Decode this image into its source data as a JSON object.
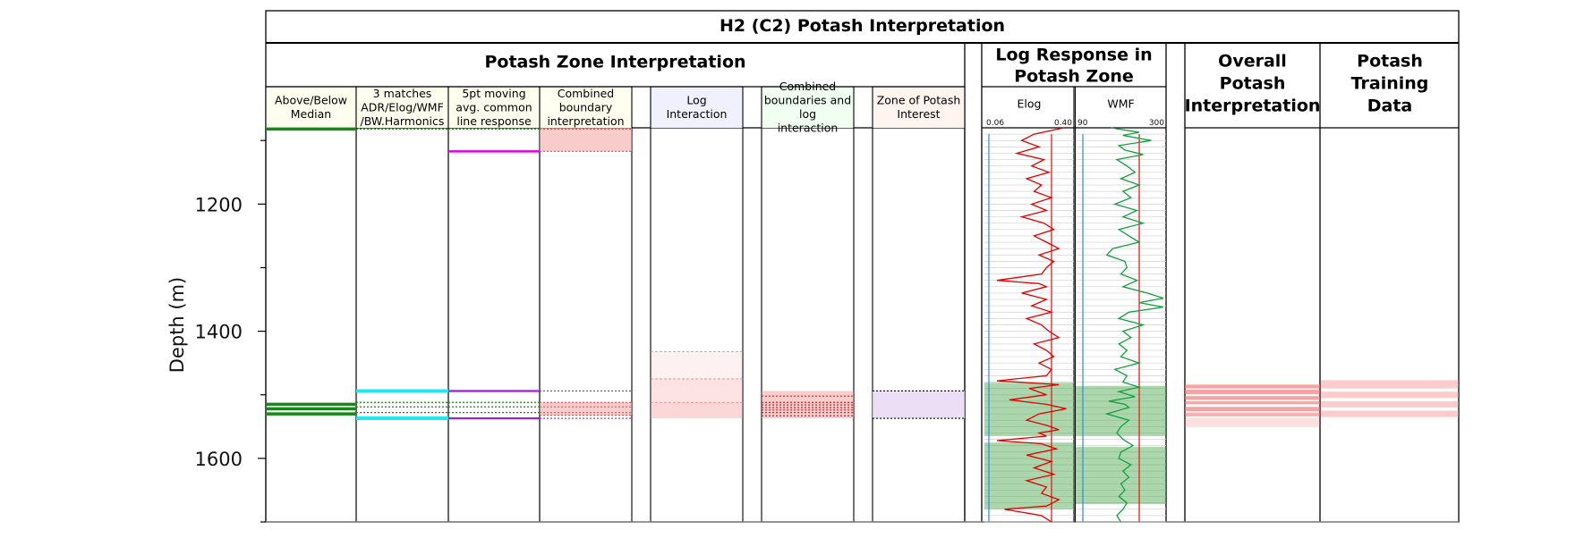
{
  "chart_data": {
    "type": "table",
    "title": "H2 (C2) Potash Interpretation",
    "ylabel": "Depth (m)",
    "yticks": [
      "1200",
      "1400",
      "1600"
    ],
    "ylim": [
      1700,
      1080
    ],
    "groups": {
      "zone": "Potash Zone Interpretation",
      "log": "Log Response in Potash Zone",
      "overall": "Overall Potash Interpretation",
      "training": "Potash Training Data"
    },
    "tracks": [
      "Above/Below Median",
      "3 matches ADR/Elog/WMF /BW.Harmonics",
      "5pt moving avg. common line response",
      "Combined boundary interpretation",
      "Log Interaction",
      "Combined boundaries and log interaction",
      "Zone of Potash Interest"
    ],
    "curves": {
      "elog": {
        "name": "Elog",
        "min_label": "0.06",
        "max_label": "0.40",
        "color": "#e00000"
      },
      "wmf": {
        "name": "WMF",
        "min_label": "90",
        "max_label": "300",
        "color": "#12a040"
      }
    },
    "median_lines": [
      1082,
      1515,
      1522,
      1530
    ],
    "matches_lines": {
      "solid": [
        1494,
        1537
      ],
      "dotted": [
        1082,
        1512,
        1519,
        1528
      ]
    },
    "moving_avg_lines": {
      "magenta": [
        1117
      ],
      "purple": [
        1494,
        1537
      ],
      "dotted": [
        1082,
        1512,
        1519,
        1528
      ]
    },
    "combined_boundary": {
      "bands": [
        [
          1080,
          1117
        ],
        [
          1512,
          1532
        ]
      ],
      "dotted": [
        1082,
        1117,
        1494,
        1512,
        1519,
        1528,
        1532,
        1537
      ]
    },
    "log_interaction_bands": [
      [
        1432,
        1475,
        0.22
      ],
      [
        1475,
        1512,
        0.45
      ],
      [
        1512,
        1537,
        0.65
      ]
    ],
    "combined_log_interaction": {
      "bands": [
        [
          1494,
          1537
        ]
      ],
      "dotted": [
        1502,
        1512,
        1516,
        1520,
        1524,
        1528,
        1533
      ]
    },
    "potash_interest_zones": [
      [
        1494,
        1537
      ]
    ],
    "log_shading": {
      "elog": [
        [
          1481,
          1565
        ],
        [
          1575,
          1680
        ]
      ],
      "wmf": [
        [
          1486,
          1565
        ],
        [
          1582,
          1672
        ]
      ]
    },
    "overall_bands": [
      [
        1484,
        1490,
        0.85
      ],
      [
        1492,
        1499,
        0.85
      ],
      [
        1502,
        1508,
        0.85
      ],
      [
        1510,
        1515,
        0.8
      ],
      [
        1519,
        1526,
        0.85
      ],
      [
        1528,
        1534,
        0.75
      ],
      [
        1536,
        1551,
        0.3
      ]
    ],
    "training_bands": [
      [
        1477,
        1490,
        0.6
      ],
      [
        1495,
        1505,
        0.6
      ],
      [
        1510,
        1520,
        0.6
      ],
      [
        1525,
        1535,
        0.6
      ]
    ],
    "elog_curve": [
      [
        1080,
        0.37
      ],
      [
        1090,
        0.25
      ],
      [
        1100,
        0.2
      ],
      [
        1110,
        0.27
      ],
      [
        1120,
        0.18
      ],
      [
        1130,
        0.29
      ],
      [
        1140,
        0.24
      ],
      [
        1150,
        0.31
      ],
      [
        1160,
        0.22
      ],
      [
        1170,
        0.28
      ],
      [
        1180,
        0.25
      ],
      [
        1190,
        0.32
      ],
      [
        1200,
        0.24
      ],
      [
        1210,
        0.3
      ],
      [
        1220,
        0.2
      ],
      [
        1230,
        0.29
      ],
      [
        1240,
        0.33
      ],
      [
        1250,
        0.25
      ],
      [
        1260,
        0.3
      ],
      [
        1270,
        0.35
      ],
      [
        1280,
        0.27
      ],
      [
        1290,
        0.33
      ],
      [
        1300,
        0.3
      ],
      [
        1310,
        0.28
      ],
      [
        1320,
        0.1
      ],
      [
        1325,
        0.27
      ],
      [
        1330,
        0.3
      ],
      [
        1340,
        0.2
      ],
      [
        1350,
        0.3
      ],
      [
        1360,
        0.24
      ],
      [
        1370,
        0.32
      ],
      [
        1380,
        0.22
      ],
      [
        1390,
        0.28
      ],
      [
        1400,
        0.31
      ],
      [
        1410,
        0.35
      ],
      [
        1420,
        0.25
      ],
      [
        1430,
        0.3
      ],
      [
        1440,
        0.33
      ],
      [
        1450,
        0.27
      ],
      [
        1460,
        0.32
      ],
      [
        1470,
        0.3
      ],
      [
        1478,
        0.1
      ],
      [
        1484,
        0.35
      ],
      [
        1490,
        0.23
      ],
      [
        1500,
        0.3
      ],
      [
        1508,
        0.15
      ],
      [
        1515,
        0.3
      ],
      [
        1522,
        0.38
      ],
      [
        1530,
        0.27
      ],
      [
        1540,
        0.22
      ],
      [
        1548,
        0.3
      ],
      [
        1555,
        0.35
      ],
      [
        1560,
        0.27
      ],
      [
        1565,
        0.3
      ],
      [
        1572,
        0.1
      ],
      [
        1577,
        0.28
      ],
      [
        1585,
        0.34
      ],
      [
        1595,
        0.22
      ],
      [
        1605,
        0.32
      ],
      [
        1615,
        0.25
      ],
      [
        1625,
        0.33
      ],
      [
        1635,
        0.22
      ],
      [
        1645,
        0.3
      ],
      [
        1655,
        0.28
      ],
      [
        1665,
        0.35
      ],
      [
        1675,
        0.3
      ],
      [
        1680,
        0.13
      ],
      [
        1690,
        0.28
      ],
      [
        1700,
        0.32
      ]
    ],
    "wmf_curve": [
      [
        1080,
        170
      ],
      [
        1087,
        240
      ],
      [
        1092,
        200
      ],
      [
        1100,
        270
      ],
      [
        1108,
        190
      ],
      [
        1115,
        205
      ],
      [
        1122,
        250
      ],
      [
        1130,
        185
      ],
      [
        1140,
        210
      ],
      [
        1150,
        230
      ],
      [
        1160,
        195
      ],
      [
        1170,
        240
      ],
      [
        1180,
        200
      ],
      [
        1190,
        220
      ],
      [
        1200,
        180
      ],
      [
        1210,
        235
      ],
      [
        1220,
        200
      ],
      [
        1230,
        250
      ],
      [
        1240,
        190
      ],
      [
        1250,
        215
      ],
      [
        1260,
        240
      ],
      [
        1270,
        175
      ],
      [
        1280,
        160
      ],
      [
        1290,
        205
      ],
      [
        1300,
        210
      ],
      [
        1310,
        195
      ],
      [
        1320,
        235
      ],
      [
        1330,
        200
      ],
      [
        1340,
        260
      ],
      [
        1348,
        300
      ],
      [
        1355,
        240
      ],
      [
        1362,
        300
      ],
      [
        1370,
        215
      ],
      [
        1380,
        190
      ],
      [
        1390,
        250
      ],
      [
        1400,
        200
      ],
      [
        1410,
        220
      ],
      [
        1420,
        190
      ],
      [
        1430,
        210
      ],
      [
        1440,
        195
      ],
      [
        1450,
        240
      ],
      [
        1460,
        180
      ],
      [
        1470,
        210
      ],
      [
        1480,
        200
      ],
      [
        1488,
        240
      ],
      [
        1495,
        190
      ],
      [
        1503,
        230
      ],
      [
        1510,
        165
      ],
      [
        1515,
        205
      ],
      [
        1520,
        215
      ],
      [
        1530,
        160
      ],
      [
        1540,
        215
      ],
      [
        1550,
        195
      ],
      [
        1560,
        185
      ],
      [
        1570,
        200
      ],
      [
        1580,
        225
      ],
      [
        1590,
        195
      ],
      [
        1600,
        190
      ],
      [
        1610,
        220
      ],
      [
        1620,
        200
      ],
      [
        1630,
        215
      ],
      [
        1640,
        195
      ],
      [
        1650,
        205
      ],
      [
        1660,
        190
      ],
      [
        1670,
        210
      ],
      [
        1680,
        200
      ],
      [
        1690,
        185
      ],
      [
        1700,
        195
      ]
    ]
  }
}
